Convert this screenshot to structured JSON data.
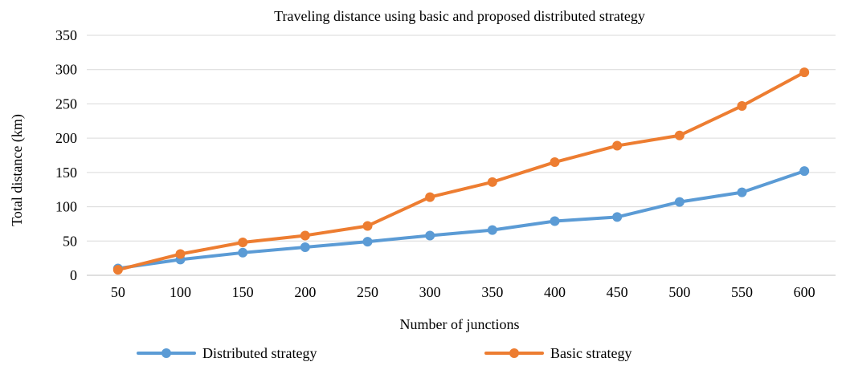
{
  "chart_data": {
    "type": "line",
    "title": "Traveling distance using basic and proposed distributed strategy",
    "xlabel": "Number of junctions",
    "ylabel": "Total distance (km)",
    "categories": [
      "50",
      "100",
      "150",
      "200",
      "250",
      "300",
      "350",
      "400",
      "450",
      "500",
      "550",
      "600"
    ],
    "ylim": [
      0,
      350
    ],
    "yticks": [
      0,
      50,
      100,
      150,
      200,
      250,
      300,
      350
    ],
    "grid": true,
    "legend_position": "bottom",
    "series": [
      {
        "name": "Distributed strategy",
        "color": "#5b9bd5",
        "values": [
          10,
          23,
          33,
          41,
          49,
          58,
          66,
          79,
          85,
          107,
          121,
          152
        ]
      },
      {
        "name": "Basic strategy",
        "color": "#ed7d31",
        "values": [
          8,
          31,
          48,
          58,
          72,
          114,
          136,
          165,
          189,
          204,
          247,
          296
        ]
      }
    ]
  }
}
